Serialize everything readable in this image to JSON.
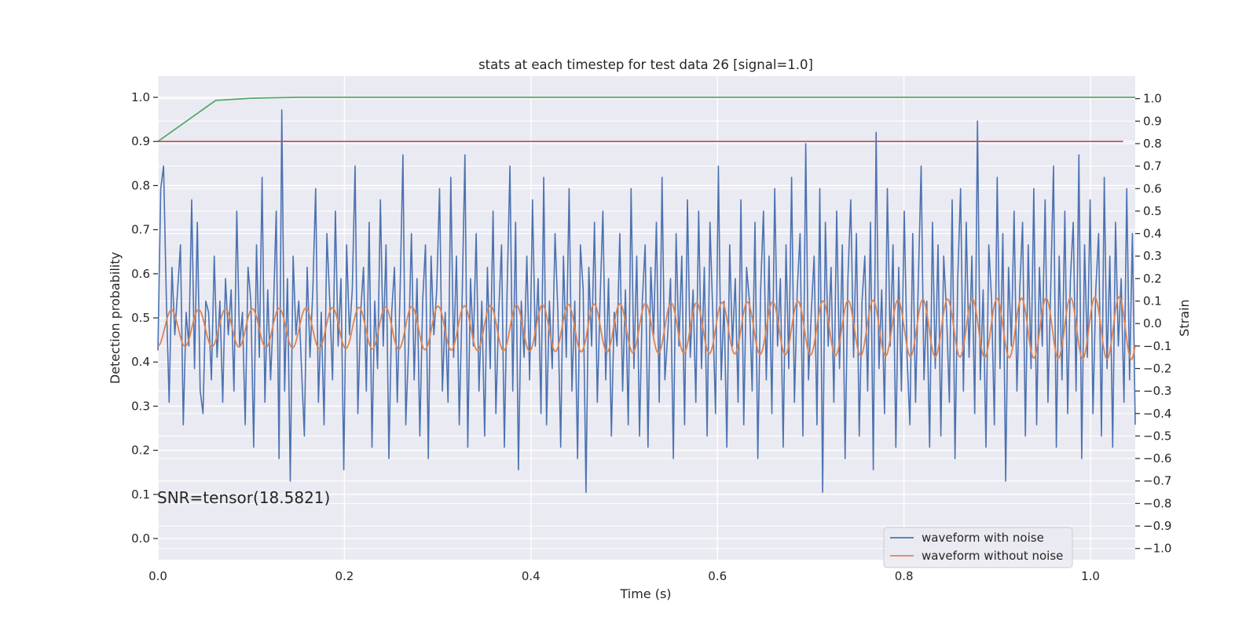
{
  "chart_data": {
    "type": "line",
    "title": "stats at each timestep for test data 26 [signal=1.0]",
    "xlabel": "Time (s)",
    "ylabel_left": "Detection probability",
    "ylabel_right": "Strain",
    "xlim": [
      0.0,
      1.048
    ],
    "ylim_left": [
      -0.048,
      1.048
    ],
    "ylim_right": [
      -1.05,
      1.1
    ],
    "x_ticks": [
      "0.0",
      "0.2",
      "0.4",
      "0.6",
      "0.8",
      "1.0"
    ],
    "x_tick_values": [
      0.0,
      0.2,
      0.4,
      0.6,
      0.8,
      1.0
    ],
    "y_left_ticks": [
      "0.0",
      "0.1",
      "0.2",
      "0.3",
      "0.4",
      "0.5",
      "0.6",
      "0.7",
      "0.8",
      "0.9",
      "1.0"
    ],
    "y_left_tick_values": [
      0.0,
      0.1,
      0.2,
      0.3,
      0.4,
      0.5,
      0.6,
      0.7,
      0.8,
      0.9,
      1.0
    ],
    "y_right_ticks": [
      "1.0",
      "0.9",
      "0.8",
      "0.7",
      "0.6",
      "0.5",
      "0.4",
      "0.3",
      "0.2",
      "0.1",
      "0.0",
      "−0.1",
      "−0.2",
      "−0.3",
      "−0.4",
      "−0.5",
      "−0.6",
      "−0.7",
      "−0.8",
      "−0.9",
      "−1.0"
    ],
    "y_right_tick_values": [
      1.0,
      0.9,
      0.8,
      0.7,
      0.6,
      0.5,
      0.4,
      0.3,
      0.2,
      0.1,
      0.0,
      -0.1,
      -0.2,
      -0.3,
      -0.4,
      -0.5,
      -0.6,
      -0.7,
      -0.8,
      -0.9,
      -1.0
    ],
    "annotation": "SNR=tensor(18.5821)",
    "legend_position": "lower-right",
    "grid": true,
    "series": [
      {
        "name": "waveform with noise",
        "axis": "right",
        "color": "#4c72b0",
        "x_start": 0.0,
        "x_end": 1.048,
        "values": [
          -0.12,
          0.6,
          0.7,
          0.1,
          -0.35,
          0.25,
          -0.05,
          0.15,
          0.35,
          -0.45,
          0.05,
          -0.1,
          0.55,
          -0.2,
          0.45,
          -0.3,
          -0.4,
          0.1,
          0.05,
          -0.25,
          0.3,
          -0.15,
          0.1,
          -0.35,
          0.2,
          -0.05,
          0.15,
          -0.3,
          0.5,
          -0.1,
          0.05,
          -0.45,
          0.25,
          0.1,
          -0.55,
          0.35,
          -0.15,
          0.65,
          -0.35,
          0.15,
          -0.25,
          0.05,
          0.5,
          -0.6,
          0.95,
          -0.3,
          0.2,
          -0.7,
          0.3,
          -0.05,
          0.1,
          -0.2,
          -0.5,
          0.25,
          -0.15,
          0.15,
          0.6,
          -0.35,
          0.05,
          -0.45,
          0.4,
          0.1,
          -0.25,
          0.5,
          -0.1,
          0.2,
          -0.65,
          0.35,
          -0.05,
          0.15,
          0.7,
          -0.4,
          0.05,
          0.25,
          -0.3,
          0.45,
          -0.55,
          0.1,
          -0.2,
          0.55,
          -0.1,
          0.35,
          -0.6,
          0.05,
          0.25,
          -0.35,
          0.15,
          0.75,
          -0.45,
          -0.1,
          0.4,
          -0.25,
          0.2,
          -0.5,
          0.1,
          0.35,
          -0.6,
          0.3,
          -0.05,
          0.15,
          0.6,
          -0.3,
          0.05,
          -0.35,
          0.65,
          -0.15,
          0.3,
          -0.45,
          0.1,
          0.75,
          -0.55,
          0.2,
          -0.1,
          0.4,
          -0.3,
          0.1,
          -0.5,
          0.25,
          -0.2,
          0.5,
          -0.4,
          0.05,
          0.35,
          -0.55,
          0.15,
          0.7,
          -0.3,
          0.45,
          -0.65,
          0.1,
          -0.15,
          0.3,
          -0.25,
          0.55,
          -0.1,
          0.2,
          -0.4,
          0.65,
          -0.45,
          0.1,
          -0.2,
          0.4,
          0.05,
          -0.55,
          0.3,
          -0.15,
          0.6,
          -0.3,
          0.1,
          -0.6,
          0.35,
          0.15,
          -0.75,
          0.25,
          -0.1,
          0.45,
          -0.35,
          0.1,
          0.5,
          -0.25,
          0.2,
          -0.5,
          0.05,
          -0.1,
          0.4,
          -0.3,
          0.15,
          -0.45,
          0.6,
          -0.2,
          0.3,
          -0.5,
          0.1,
          0.35,
          -0.55,
          0.25,
          -0.05,
          0.45,
          -0.35,
          0.65,
          -0.25,
          -0.05,
          0.2,
          -0.6,
          0.4,
          -0.1,
          0.3,
          -0.45,
          0.55,
          -0.15,
          0.15,
          -0.35,
          0.5,
          -0.2,
          0.25,
          -0.5,
          0.45,
          0.05,
          -0.4,
          0.7,
          -0.25,
          0.1,
          -0.55,
          0.35,
          -0.1,
          0.2,
          -0.35,
          0.55,
          -0.45,
          0.25,
          0.1,
          -0.3,
          0.45,
          -0.6,
          0.15,
          0.5,
          -0.25,
          0.3,
          -0.4,
          0.6,
          -0.1,
          0.2,
          -0.55,
          0.35,
          -0.2,
          0.65,
          -0.35,
          0.15,
          0.4,
          -0.5,
          0.8,
          -0.25,
          0.05,
          0.3,
          -0.45,
          0.6,
          -0.75,
          0.45,
          -0.1,
          0.25,
          -0.35,
          0.5,
          -0.2,
          0.35,
          -0.6,
          0.2,
          0.55,
          -0.15,
          0.4,
          -0.5,
          0.1,
          0.3,
          -0.3,
          0.45,
          -0.65,
          0.85,
          -0.2,
          0.15,
          -0.4,
          0.6,
          -0.1,
          0.35,
          -0.55,
          0.25,
          -0.3,
          0.5,
          -0.15,
          -0.45,
          0.4,
          -0.35,
          0.2,
          0.7,
          -0.25,
          0.1,
          -0.55,
          0.45,
          -0.2,
          0.35,
          -0.5,
          0.3,
          0.05,
          -0.35,
          0.55,
          -0.6,
          0.2,
          0.6,
          -0.3,
          0.45,
          -0.15,
          0.3,
          -0.4,
          0.9,
          -0.25,
          0.15,
          -0.55,
          0.35,
          0.1,
          -0.45,
          0.65,
          -0.2,
          0.4,
          -0.7,
          0.25,
          -0.1,
          0.5,
          -0.3,
          0.15,
          0.45,
          -0.5,
          0.35,
          -0.2,
          0.6,
          -0.45,
          0.25,
          -0.1,
          0.55,
          -0.35,
          0.15,
          0.7,
          -0.55,
          0.3,
          -0.25,
          0.5,
          -0.4,
          0.2,
          0.45,
          -0.3,
          0.75,
          -0.6,
          0.35,
          -0.15,
          0.55,
          -0.4,
          0.15,
          0.4,
          -0.5,
          0.65,
          -0.2,
          0.3,
          -0.55,
          0.45,
          -0.1,
          0.2,
          -0.35,
          0.6,
          -0.25,
          0.4,
          -0.45
        ],
        "note_draw_only": false
      },
      {
        "name": "waveform without noise",
        "axis": "right",
        "color": "#dd8452",
        "x_start": 0.0,
        "x_end": 1.048,
        "chirp_amplitude_start": 0.08,
        "chirp_amplitude_end": 0.14,
        "chirp_cycles": 36,
        "chirp_offset": -0.02,
        "note_draw_only": false
      },
      {
        "name": "",
        "axis": "left",
        "color": "#55a868",
        "x": [
          0.0,
          0.062,
          0.1,
          0.15,
          0.2,
          1.048
        ],
        "y": [
          0.9,
          0.993,
          0.998,
          1.0,
          1.0,
          1.0
        ]
      },
      {
        "name": "",
        "axis": "left",
        "color": "#c44e52",
        "x": [
          0.0,
          1.035
        ],
        "y": [
          0.9,
          0.9
        ]
      }
    ]
  }
}
